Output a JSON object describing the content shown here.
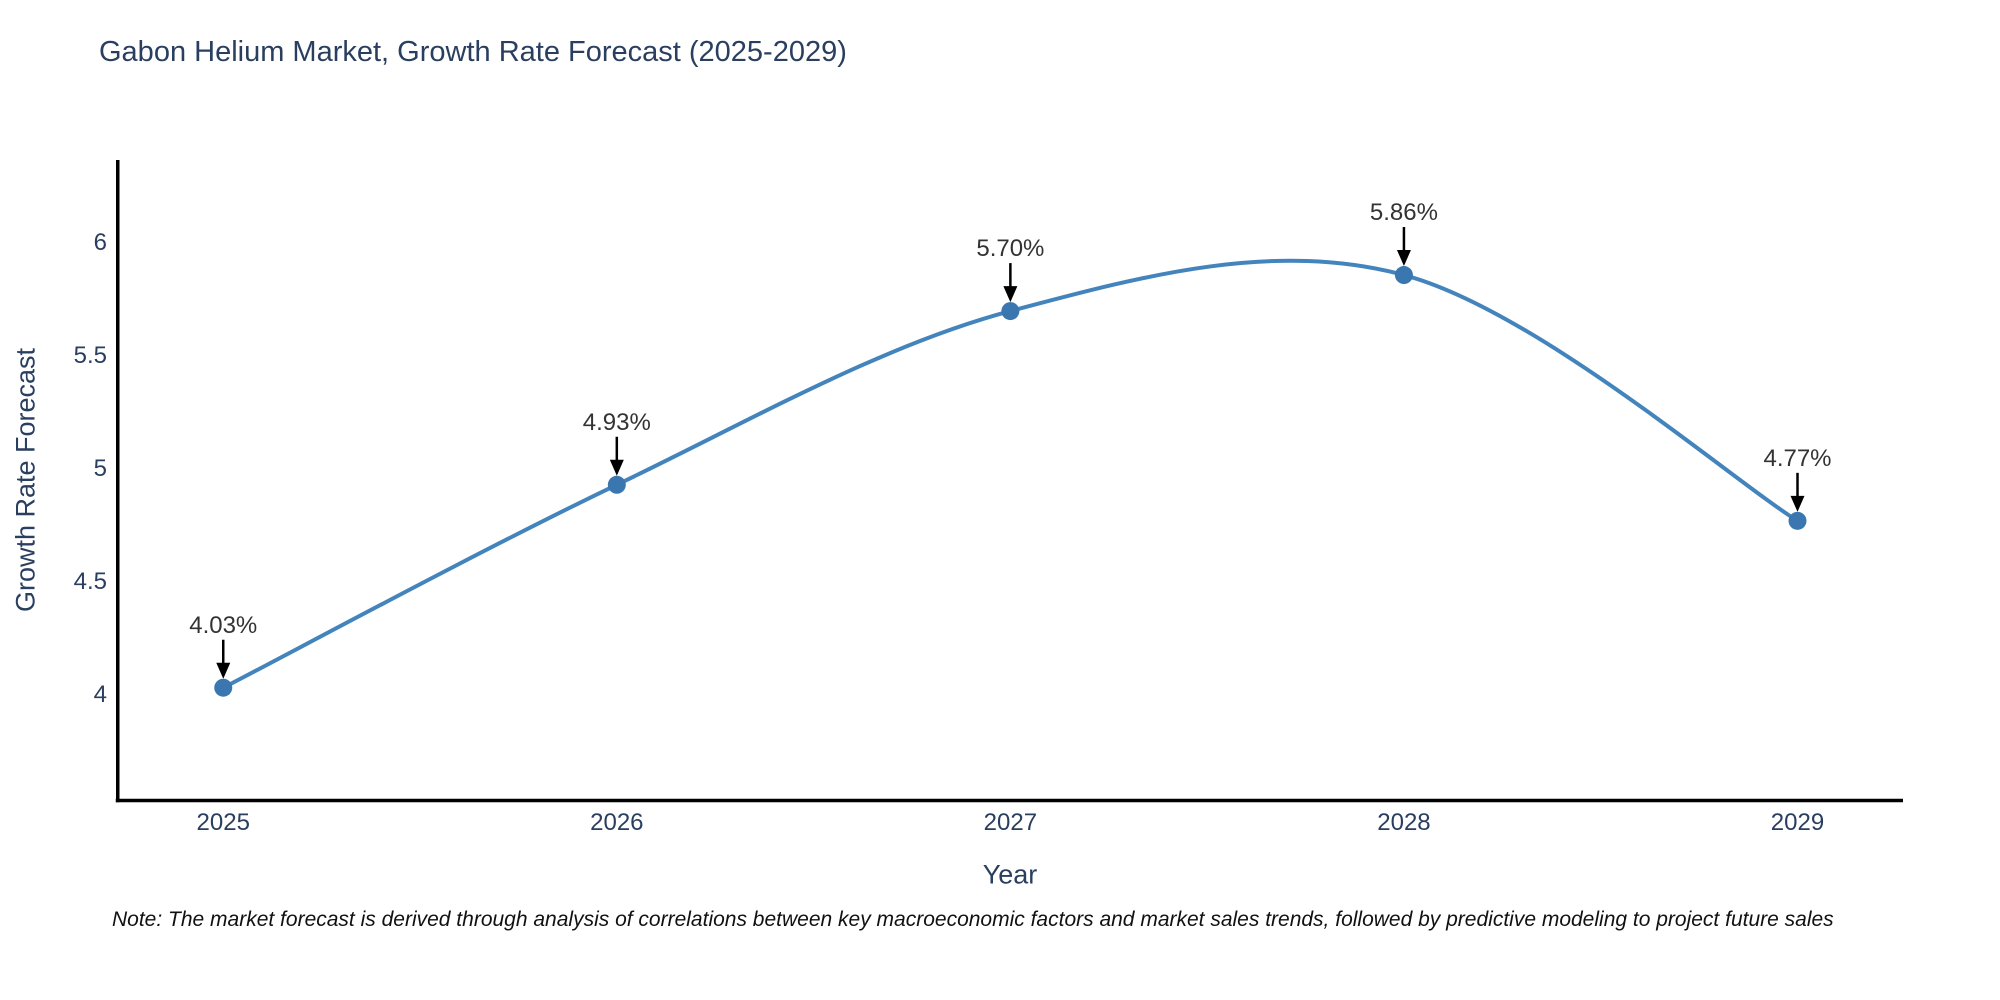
{
  "figure": {
    "note": "Note: The market forecast is derived through analysis of correlations between key macroeconomic factors and market sales trends, followed by predictive modeling to project future sales"
  },
  "chart_data": {
    "type": "line",
    "title": "Gabon Helium Market, Growth Rate Forecast (2025-2029)",
    "x": [
      2025,
      2026,
      2027,
      2028,
      2029
    ],
    "y": [
      4.03,
      4.93,
      5.7,
      5.86,
      4.77
    ],
    "point_labels": [
      "4.03%",
      "4.93%",
      "5.70%",
      "5.86%",
      "4.77%"
    ],
    "xtick_labels": [
      "2025",
      "2026",
      "2027",
      "2028",
      "2029"
    ],
    "yticks": [
      4,
      4.5,
      5,
      5.5,
      6
    ],
    "ytick_labels": [
      "4",
      "4.5",
      "5",
      "5.5",
      "6"
    ],
    "xlabel": "Year",
    "ylabel": "Growth Rate Forecast",
    "ylim": [
      3.53,
      6.37
    ],
    "line_shape": "spline",
    "grid": false,
    "legend": "none",
    "annotation_arrows": "black-down-arrow",
    "colors": {
      "line": "#4484bc",
      "marker": "#3a76b0",
      "axis": "#000000",
      "title_text": "#2a3f5f",
      "tick_text": "#2a3f5f",
      "annotation_text": "#333333",
      "note_text": "#111111",
      "background": "#ffffff"
    }
  }
}
